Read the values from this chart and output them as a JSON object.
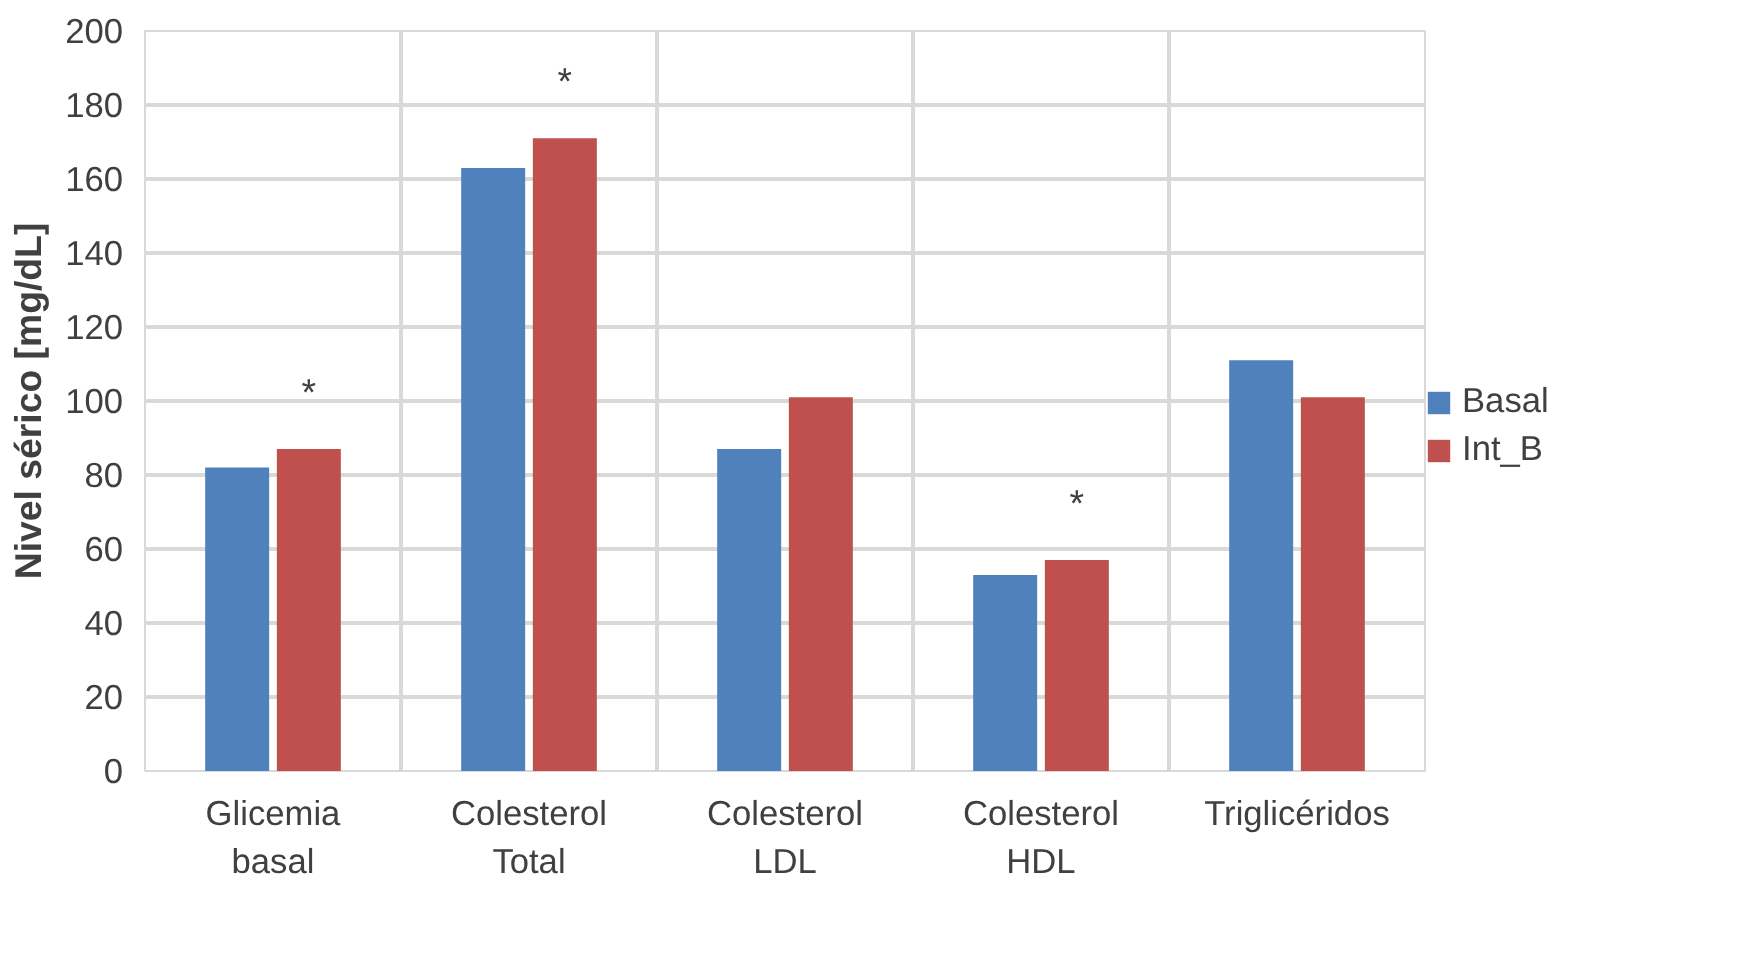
{
  "chart_data": {
    "type": "bar",
    "ylabel": "Nivel sérico [mg/dL]",
    "categories": [
      "Glicemia\nbasal",
      "Colesterol\nTotal",
      "Colesterol\nLDL",
      "Colesterol\nHDL",
      "Triglicéridos"
    ],
    "series": [
      {
        "name": "Basal",
        "color": "#4f81bd",
        "values": [
          82,
          163,
          87,
          53,
          111
        ]
      },
      {
        "name": "Int_B",
        "color": "#c0504d",
        "values": [
          87,
          171,
          101,
          57,
          101
        ],
        "value_labels": [
          "*",
          "*",
          null,
          "*",
          null
        ]
      }
    ],
    "ylim": [
      0,
      200
    ],
    "yticks": [
      0,
      20,
      40,
      60,
      80,
      100,
      120,
      140,
      160,
      180,
      200
    ],
    "grid": true,
    "legend": "right"
  }
}
